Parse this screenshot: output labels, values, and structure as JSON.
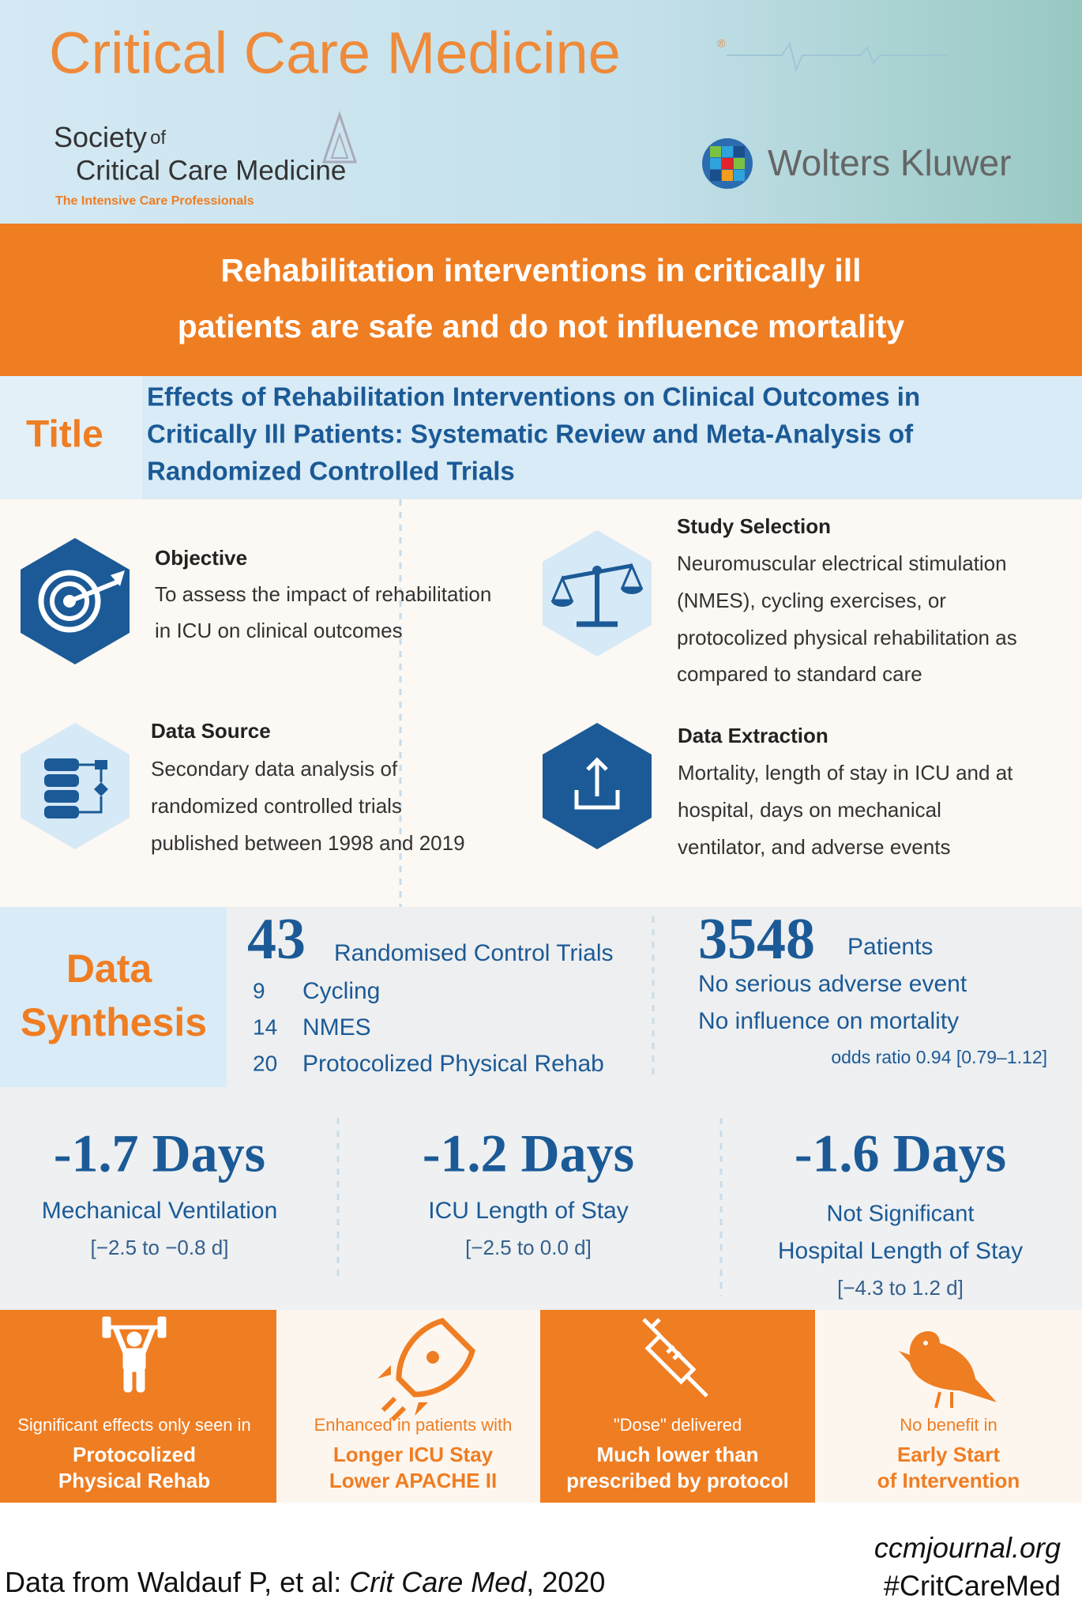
{
  "header": {
    "journal": "Critical Care Medicine",
    "registered": "®",
    "society_word": "Society",
    "society_of": "of",
    "society_name": "Critical Care Medicine",
    "society_tagline": "The Intensive Care Professionals",
    "publisher": "Wolters Kluwer"
  },
  "banner": {
    "lines": [
      "Rehabilitation interventions in critically ill",
      "patients are safe and do not influence mortality"
    ]
  },
  "title": {
    "label": "Title",
    "lines": [
      "Effects of Rehabilitation Interventions on Clinical Outcomes in",
      "Critically Ill Patients: Systematic Review and Meta-Analysis of",
      "Randomized Controlled Trials"
    ]
  },
  "methods": [
    {
      "heading": "Objective",
      "lines": [
        "To assess the impact of rehabilitation",
        "in ICU on clinical outcomes"
      ]
    },
    {
      "heading": "Study Selection",
      "lines": [
        "Neuromuscular electrical stimulation",
        "(NMES), cycling exercises, or",
        "protocolized physical rehabilitation as",
        "compared to standard care"
      ]
    },
    {
      "heading": "Data Source",
      "lines": [
        "Secondary data analysis of",
        "randomized controlled trials",
        "published between 1998 and 2019"
      ]
    },
    {
      "heading": "Data Extraction",
      "lines": [
        "Mortality, length of stay in ICU and at",
        "hospital, days on mechanical",
        "ventilator, and adverse events"
      ]
    }
  ],
  "synthesis": {
    "label_lines": [
      "Data",
      "Synthesis"
    ],
    "trials": {
      "count": "43",
      "label": "Randomised Control Trials",
      "breakdown": [
        {
          "count": "9",
          "name": "Cycling"
        },
        {
          "count": "14",
          "name": "NMES"
        },
        {
          "count": "20",
          "name": "Protocolized Physical Rehab"
        }
      ]
    },
    "patients": {
      "count": "3548",
      "label": "Patients",
      "notes": [
        "No serious adverse event",
        "No influence on mortality"
      ],
      "odds_ratio": "odds ratio 0.94 [0.79–1.12]"
    }
  },
  "outcomes": [
    {
      "value": "-1.7 Days",
      "label": "Mechanical Ventilation",
      "ci": "[−2.5 to −0.8 d]"
    },
    {
      "value": "-1.2 Days",
      "label": "ICU Length of Stay",
      "ci": "[−2.5 to 0.0 d]"
    },
    {
      "value": "-1.6 Days",
      "note": "Not Significant",
      "label": "Hospital Length of Stay",
      "ci": "[−4.3 to 1.2 d]"
    }
  ],
  "highlights": [
    {
      "intro": "Significant effects only seen in",
      "lines": [
        "Protocolized",
        "Physical Rehab"
      ]
    },
    {
      "intro": "Enhanced in patients with",
      "lines": [
        "Longer ICU Stay",
        "Lower APACHE II"
      ]
    },
    {
      "intro": "\"Dose\" delivered",
      "lines": [
        "Much lower than",
        "prescribed by protocol"
      ]
    },
    {
      "intro": "No benefit in",
      "lines": [
        "Early Start",
        "of Intervention"
      ]
    }
  ],
  "footer": {
    "citation_prefix": "Data from Waldauf P, et al: ",
    "citation_journal": "Crit Care Med",
    "citation_suffix": ", 2020",
    "website": "ccmjournal.org",
    "hashtag": "#CritCareMed"
  }
}
